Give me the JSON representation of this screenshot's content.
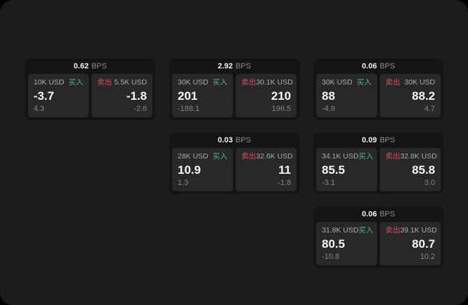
{
  "labels": {
    "bps_unit": "BPS",
    "buy": "买入",
    "sell": "卖出"
  },
  "colors": {
    "buy_green": "#4fb379",
    "sell_red": "#d0505f",
    "window_bg": "#1c1c1e",
    "card_bg": "#141416",
    "panel_bg": "#28282a"
  },
  "cards": [
    {
      "bps": "0.62",
      "buy": {
        "amount": "10K USD",
        "price": "-3.7",
        "sub": "4.3"
      },
      "sell": {
        "amount": "5.5K USD",
        "price": "-1.8",
        "sub": "-2.6"
      }
    },
    {
      "bps": "2.92",
      "buy": {
        "amount": "30K USD",
        "price": "201",
        "sub": "-188.1"
      },
      "sell": {
        "amount": "30.1K USD",
        "price": "210",
        "sub": "196.5"
      }
    },
    {
      "bps": "0.06",
      "buy": {
        "amount": "30K USD",
        "price": "88",
        "sub": "-4.9"
      },
      "sell": {
        "amount": "30K USD",
        "price": "88.2",
        "sub": "4.7"
      }
    },
    {
      "bps": "0.03",
      "buy": {
        "amount": "28K USD",
        "price": "10.9",
        "sub": "1.3"
      },
      "sell": {
        "amount": "32.6K USD",
        "price": "11",
        "sub": "-1.8"
      }
    },
    {
      "bps": "0.09",
      "buy": {
        "amount": "34.1K USD",
        "price": "85.5",
        "sub": "-3.1"
      },
      "sell": {
        "amount": "32.8K USD",
        "price": "85.8",
        "sub": "3.0"
      }
    },
    {
      "bps": "0.06",
      "buy": {
        "amount": "31.8K USD",
        "price": "80.5",
        "sub": "-10.8"
      },
      "sell": {
        "amount": "39.1K USD",
        "price": "80.7",
        "sub": "10.2"
      }
    }
  ]
}
